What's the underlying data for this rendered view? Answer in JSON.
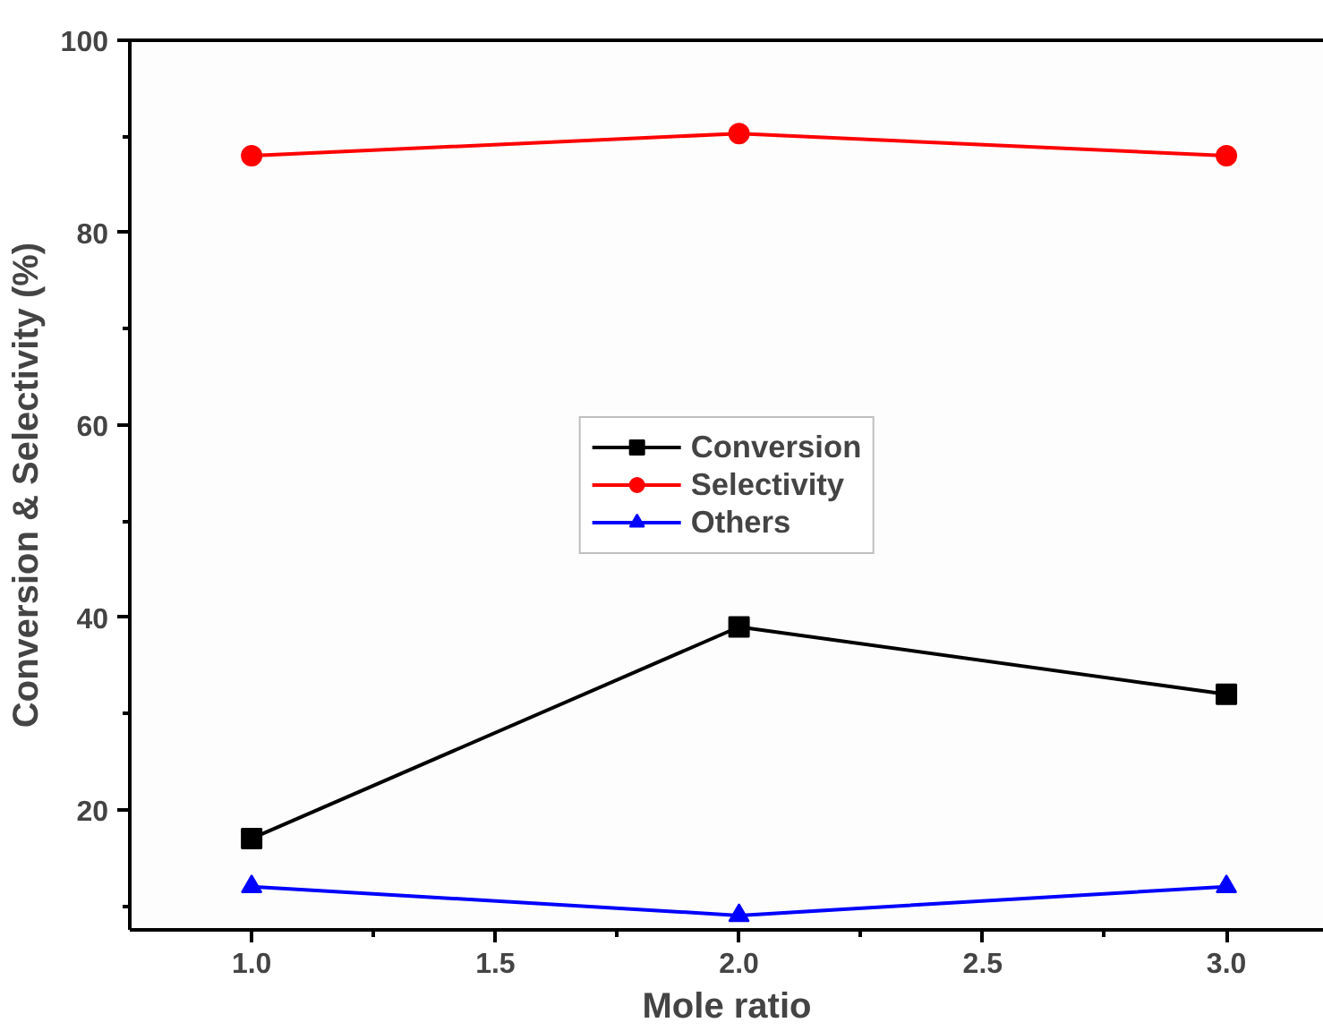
{
  "chart_data": {
    "type": "line",
    "xlabel": "Mole ratio",
    "ylabel": "Conversion & Selectivity (%)",
    "x": [
      1.0,
      2.0,
      3.0
    ],
    "series": [
      {
        "name": "Conversion",
        "color": "#000000",
        "marker": "square",
        "values": [
          17,
          39,
          32
        ]
      },
      {
        "name": "Selectivity",
        "color": "#ff0000",
        "marker": "circle",
        "values": [
          88,
          90.3,
          88
        ]
      },
      {
        "name": "Others",
        "color": "#0000ff",
        "marker": "triangle",
        "values": [
          12,
          9,
          12
        ]
      }
    ],
    "xlim": [
      0.75,
      3.2
    ],
    "ylim": [
      7.5,
      100
    ],
    "xticks": [
      {
        "value": 1.0,
        "label": "1.0"
      },
      {
        "value": 1.25,
        "label": null
      },
      {
        "value": 1.5,
        "label": "1.5"
      },
      {
        "value": 1.75,
        "label": null
      },
      {
        "value": 2.0,
        "label": "2.0"
      },
      {
        "value": 2.25,
        "label": null
      },
      {
        "value": 2.5,
        "label": "2.5"
      },
      {
        "value": 2.75,
        "label": null
      },
      {
        "value": 3.0,
        "label": "3.0"
      }
    ],
    "yticks": [
      {
        "value": 10,
        "label": null
      },
      20,
      {
        "value": 30,
        "label": null
      },
      40,
      {
        "value": 50,
        "label": null
      },
      60,
      {
        "value": 70,
        "label": null
      },
      80,
      {
        "value": 90,
        "label": null
      },
      100
    ],
    "legend": "center",
    "grid": false,
    "line_style": "solid"
  }
}
